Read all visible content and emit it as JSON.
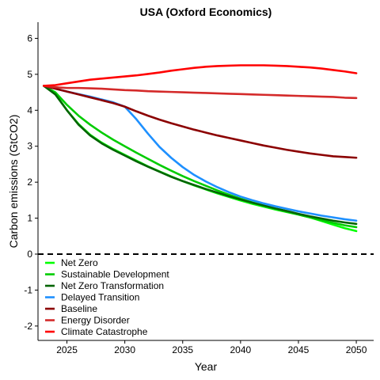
{
  "chart_data": {
    "type": "line",
    "title": "USA (Oxford Economics)",
    "xlabel": "Year",
    "ylabel": "Carbon emissions (GtCO2)",
    "xlim": [
      2022.5,
      2051.5
    ],
    "ylim": [
      -2.4,
      6.45
    ],
    "xticks": [
      2025,
      2030,
      2035,
      2040,
      2045,
      2050
    ],
    "yticks": [
      -2,
      -1,
      0,
      1,
      2,
      3,
      4,
      5,
      6
    ],
    "grid": false,
    "legend_position": "bottom-left inside",
    "reference_line": {
      "y": 0,
      "style": "dashed",
      "color": "#000000"
    },
    "x": [
      2023,
      2024,
      2025,
      2026,
      2027,
      2028,
      2029,
      2030,
      2031,
      2032,
      2033,
      2034,
      2035,
      2036,
      2037,
      2038,
      2039,
      2040,
      2041,
      2042,
      2043,
      2044,
      2045,
      2046,
      2047,
      2048,
      2049,
      2050
    ],
    "series": [
      {
        "name": "Net Zero",
        "color": "#00ff00",
        "values": [
          4.68,
          4.46,
          4.0,
          3.62,
          3.32,
          3.1,
          2.92,
          2.76,
          2.6,
          2.44,
          2.3,
          2.16,
          2.03,
          1.91,
          1.8,
          1.69,
          1.59,
          1.49,
          1.4,
          1.32,
          1.24,
          1.17,
          1.1,
          1.02,
          0.92,
          0.82,
          0.72,
          0.64
        ]
      },
      {
        "name": "Sustainable Development",
        "color": "#00cc00",
        "values": [
          4.68,
          4.5,
          4.15,
          3.85,
          3.6,
          3.38,
          3.18,
          3.0,
          2.82,
          2.65,
          2.48,
          2.32,
          2.17,
          2.03,
          1.9,
          1.77,
          1.65,
          1.54,
          1.44,
          1.35,
          1.26,
          1.18,
          1.1,
          1.02,
          0.94,
          0.87,
          0.8,
          0.75
        ]
      },
      {
        "name": "Net Zero Transformation",
        "color": "#006400",
        "values": [
          4.68,
          4.44,
          4.0,
          3.6,
          3.3,
          3.08,
          2.9,
          2.74,
          2.58,
          2.43,
          2.29,
          2.15,
          2.03,
          1.92,
          1.81,
          1.71,
          1.61,
          1.52,
          1.43,
          1.35,
          1.27,
          1.2,
          1.12,
          1.05,
          0.99,
          0.93,
          0.88,
          0.84
        ]
      },
      {
        "name": "Delayed Transition",
        "color": "#1e90ff",
        "values": [
          4.68,
          4.6,
          4.52,
          4.45,
          4.38,
          4.3,
          4.22,
          4.1,
          3.75,
          3.35,
          2.98,
          2.68,
          2.42,
          2.2,
          2.02,
          1.86,
          1.72,
          1.6,
          1.5,
          1.41,
          1.33,
          1.26,
          1.19,
          1.13,
          1.07,
          1.02,
          0.97,
          0.93
        ]
      },
      {
        "name": "Baseline",
        "color": "#8b0000",
        "values": [
          4.68,
          4.6,
          4.52,
          4.44,
          4.36,
          4.28,
          4.2,
          4.1,
          3.97,
          3.85,
          3.74,
          3.64,
          3.55,
          3.46,
          3.38,
          3.3,
          3.23,
          3.16,
          3.09,
          3.02,
          2.96,
          2.9,
          2.85,
          2.8,
          2.76,
          2.72,
          2.7,
          2.68
        ]
      },
      {
        "name": "Energy Disorder",
        "color": "#d42a2a",
        "values": [
          4.68,
          4.64,
          4.62,
          4.62,
          4.61,
          4.6,
          4.58,
          4.56,
          4.55,
          4.53,
          4.52,
          4.51,
          4.5,
          4.49,
          4.48,
          4.47,
          4.46,
          4.45,
          4.44,
          4.43,
          4.42,
          4.41,
          4.4,
          4.39,
          4.38,
          4.37,
          4.35,
          4.34
        ]
      },
      {
        "name": "Climate Catastrophe",
        "color": "#ff0000",
        "values": [
          4.68,
          4.7,
          4.75,
          4.8,
          4.85,
          4.88,
          4.91,
          4.94,
          4.97,
          5.01,
          5.05,
          5.1,
          5.14,
          5.18,
          5.21,
          5.23,
          5.24,
          5.25,
          5.25,
          5.25,
          5.24,
          5.23,
          5.21,
          5.19,
          5.16,
          5.12,
          5.08,
          5.03
        ]
      }
    ]
  }
}
